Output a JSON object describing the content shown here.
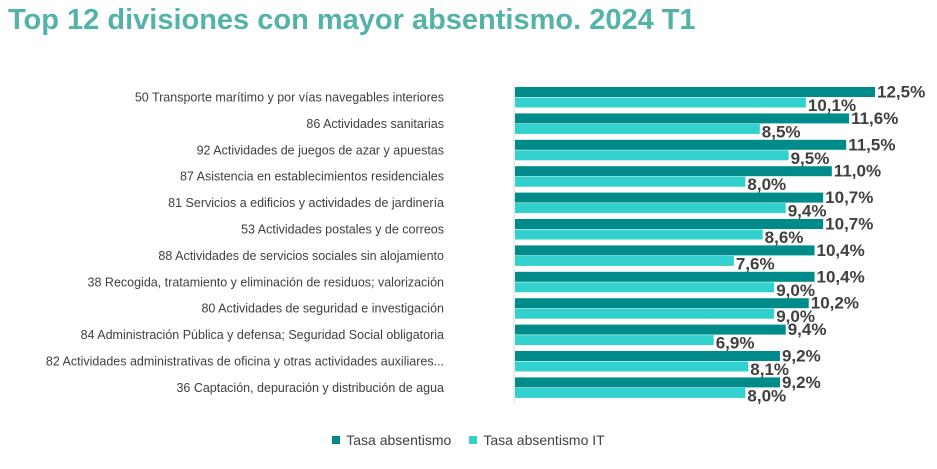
{
  "title": "Top 12 divisiones con mayor absentismo. 2024 T1",
  "colors": {
    "title": "#53b3a9",
    "series1": "#008b8b",
    "series2": "#33d1cd",
    "text": "#404040"
  },
  "chart_data": {
    "type": "bar",
    "orientation": "horizontal",
    "title": "Top 12 divisiones con mayor absentismo. 2024 T1",
    "categories": [
      "50 Transporte marítimo y por vías navegables interiores",
      "86 Actividades sanitarias",
      "92 Actividades de juegos de azar y apuestas",
      "87 Asistencia en establecimientos residenciales",
      "81 Servicios a edificios y actividades de jardinería",
      "53 Actividades postales y de correos",
      "88 Actividades de servicios sociales sin alojamiento",
      "38 Recogida, tratamiento y eliminación de residuos; valorización",
      "80 Actividades de seguridad e investigación",
      "84 Administración Pública y defensa; Seguridad Social obligatoria",
      "82 Actividades administrativas de oficina y otras actividades auxiliares...",
      "36 Captación, depuración y distribución de agua"
    ],
    "series": [
      {
        "name": "Tasa absentismo",
        "color": "#008b8b",
        "values": [
          12.5,
          11.6,
          11.5,
          11.0,
          10.7,
          10.7,
          10.4,
          10.4,
          10.2,
          9.4,
          9.2,
          9.2
        ],
        "labels": [
          "12,5%",
          "11,6%",
          "11,5%",
          "11,0%",
          "10,7%",
          "10,7%",
          "10,4%",
          "10,4%",
          "10,2%",
          "9,4%",
          "9,2%",
          "9,2%"
        ]
      },
      {
        "name": "Tasa absentismo IT",
        "color": "#33d1cd",
        "values": [
          10.1,
          8.5,
          9.5,
          8.0,
          9.4,
          8.6,
          7.6,
          9.0,
          9.0,
          6.9,
          8.1,
          8.0
        ],
        "labels": [
          "10,1%",
          "8,5%",
          "9,5%",
          "8,0%",
          "9,4%",
          "8,6%",
          "7,6%",
          "9,0%",
          "9,0%",
          "6,9%",
          "8,1%",
          "8,0%"
        ]
      }
    ],
    "xlim": [
      0,
      12.5
    ],
    "grid": false,
    "legend_position": "bottom"
  }
}
